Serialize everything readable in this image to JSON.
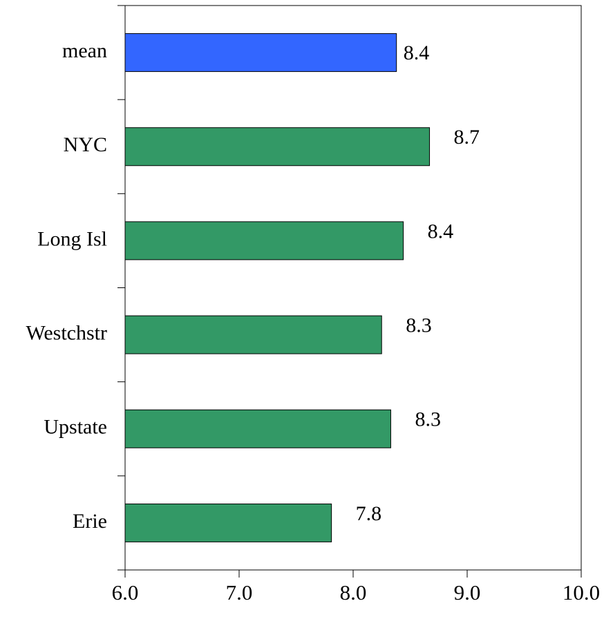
{
  "chart_data": {
    "type": "bar",
    "orientation": "horizontal",
    "categories": [
      "mean",
      "NYC",
      "Long Isl",
      "Westchstr",
      "Upstate",
      "Erie"
    ],
    "values": [
      8.38,
      8.67,
      8.44,
      8.25,
      8.33,
      7.81
    ],
    "value_labels": [
      "8.4",
      "8.7",
      "8.4",
      "8.3",
      "8.3",
      "7.8"
    ],
    "colors": [
      "#3366ff",
      "#339966",
      "#339966",
      "#339966",
      "#339966",
      "#339966"
    ],
    "xlim": [
      6.0,
      10.0
    ],
    "xticks": [
      {
        "value": 6,
        "label": "6.0"
      },
      {
        "value": 7,
        "label": "7.0"
      },
      {
        "value": 8,
        "label": "8.0"
      },
      {
        "value": 9,
        "label": "9.0"
      },
      {
        "value": 10,
        "label": "10.0"
      }
    ],
    "grid": false
  }
}
